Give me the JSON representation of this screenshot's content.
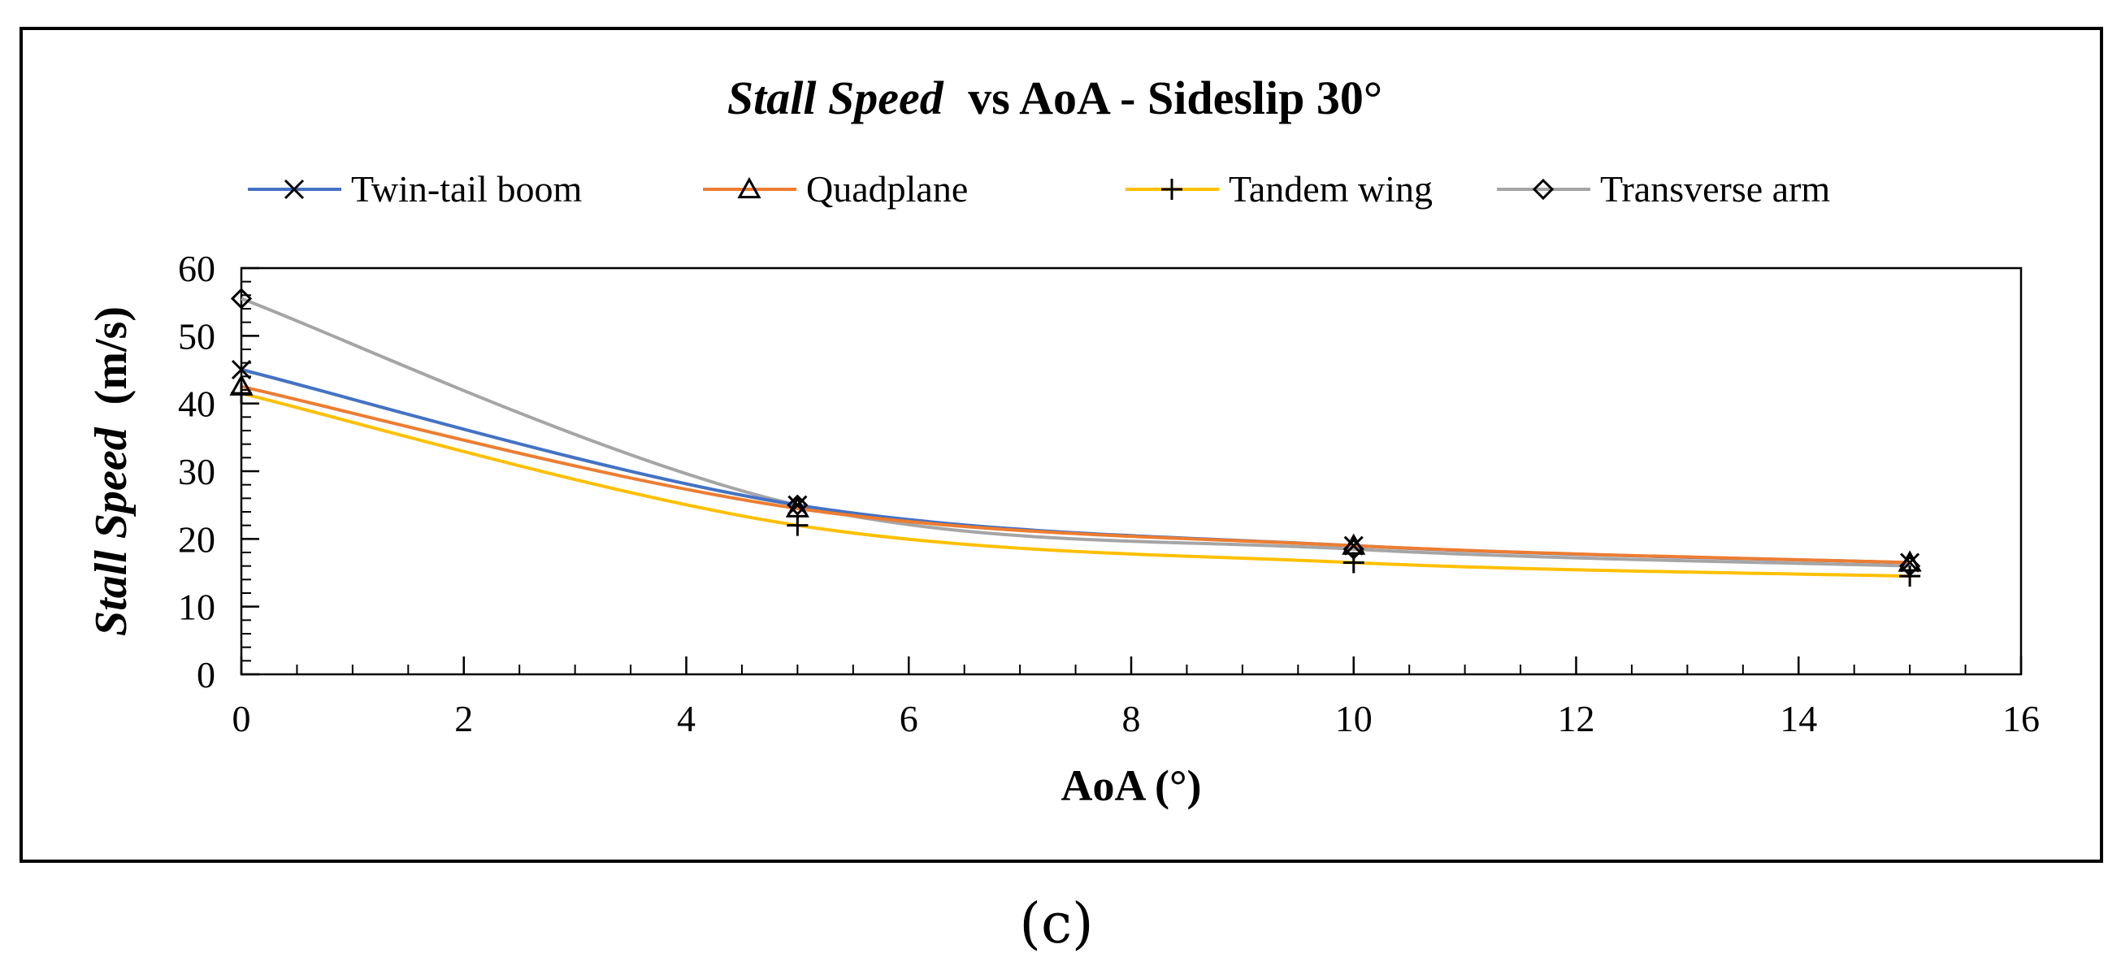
{
  "chart_data": {
    "type": "line",
    "title": {
      "italic_part": "Stall Speed",
      "regular_part": "vs AoA - Sideslip 30°"
    },
    "xlabel": "AoA (°)",
    "ylabel": {
      "italic_part": "Stall Speed",
      "regular_part": "(m/s)"
    },
    "xlim": [
      0,
      16
    ],
    "ylim": [
      0,
      60
    ],
    "x_ticks": [
      0,
      2,
      4,
      6,
      8,
      10,
      12,
      14,
      16
    ],
    "y_ticks": [
      0,
      10,
      20,
      30,
      40,
      50,
      60
    ],
    "x_minor_step": 0.5,
    "y_minor_step": 2,
    "legend_position": "top",
    "grid": false,
    "smooth": true,
    "x": [
      0,
      5,
      10,
      15
    ],
    "series": [
      {
        "name": "Twin-tail boom",
        "color": "#4472C4",
        "marker": "x",
        "values": [
          45,
          25,
          19,
          16.5
        ]
      },
      {
        "name": "Quadplane",
        "color": "#ED7D31",
        "marker": "triangle",
        "values": [
          42.5,
          24.5,
          19,
          16.5
        ]
      },
      {
        "name": "Tandem wing",
        "color": "#FFC000",
        "marker": "plus",
        "values": [
          41.5,
          22,
          16.5,
          14.5
        ]
      },
      {
        "name": "Transverse arm",
        "color": "#A5A5A5",
        "marker": "diamond",
        "values": [
          55.5,
          25,
          18.5,
          16
        ]
      }
    ]
  },
  "caption": "(c)"
}
